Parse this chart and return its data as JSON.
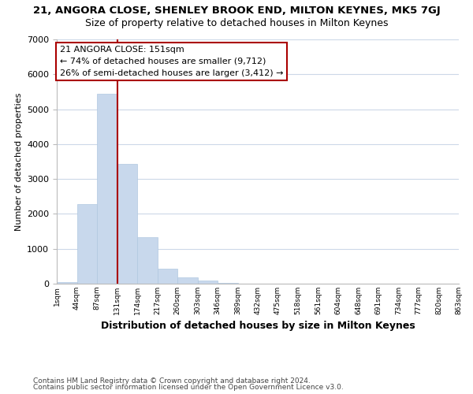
{
  "title": "21, ANGORA CLOSE, SHENLEY BROOK END, MILTON KEYNES, MK5 7GJ",
  "subtitle": "Size of property relative to detached houses in Milton Keynes",
  "xlabel": "Distribution of detached houses by size in Milton Keynes",
  "ylabel": "Number of detached properties",
  "bar_values": [
    50,
    2280,
    5450,
    3430,
    1340,
    430,
    170,
    80,
    30,
    0,
    0,
    0,
    0,
    0,
    0,
    0,
    0,
    0,
    0,
    0
  ],
  "bar_color": "#c8d8ec",
  "bar_edge_color": "#b0c8e0",
  "x_labels": [
    "1sqm",
    "44sqm",
    "87sqm",
    "131sqm",
    "174sqm",
    "217sqm",
    "260sqm",
    "303sqm",
    "346sqm",
    "389sqm",
    "432sqm",
    "475sqm",
    "518sqm",
    "561sqm",
    "604sqm",
    "648sqm",
    "691sqm",
    "734sqm",
    "777sqm",
    "820sqm",
    "863sqm"
  ],
  "ylim": [
    0,
    7000
  ],
  "yticks": [
    0,
    1000,
    2000,
    3000,
    4000,
    5000,
    6000,
    7000
  ],
  "vline_x": 3,
  "vline_color": "#aa0000",
  "annotation_title": "21 ANGORA CLOSE: 151sqm",
  "annotation_line1": "← 74% of detached houses are smaller (9,712)",
  "annotation_line2": "26% of semi-detached houses are larger (3,412) →",
  "annotation_box_color": "#ffffff",
  "annotation_box_edge": "#aa0000",
  "footer_line1": "Contains HM Land Registry data © Crown copyright and database right 2024.",
  "footer_line2": "Contains public sector information licensed under the Open Government Licence v3.0.",
  "bg_color": "#ffffff",
  "grid_color": "#ccd8e8",
  "title_fontsize": 9.5,
  "subtitle_fontsize": 9,
  "bar_width": 1.0
}
